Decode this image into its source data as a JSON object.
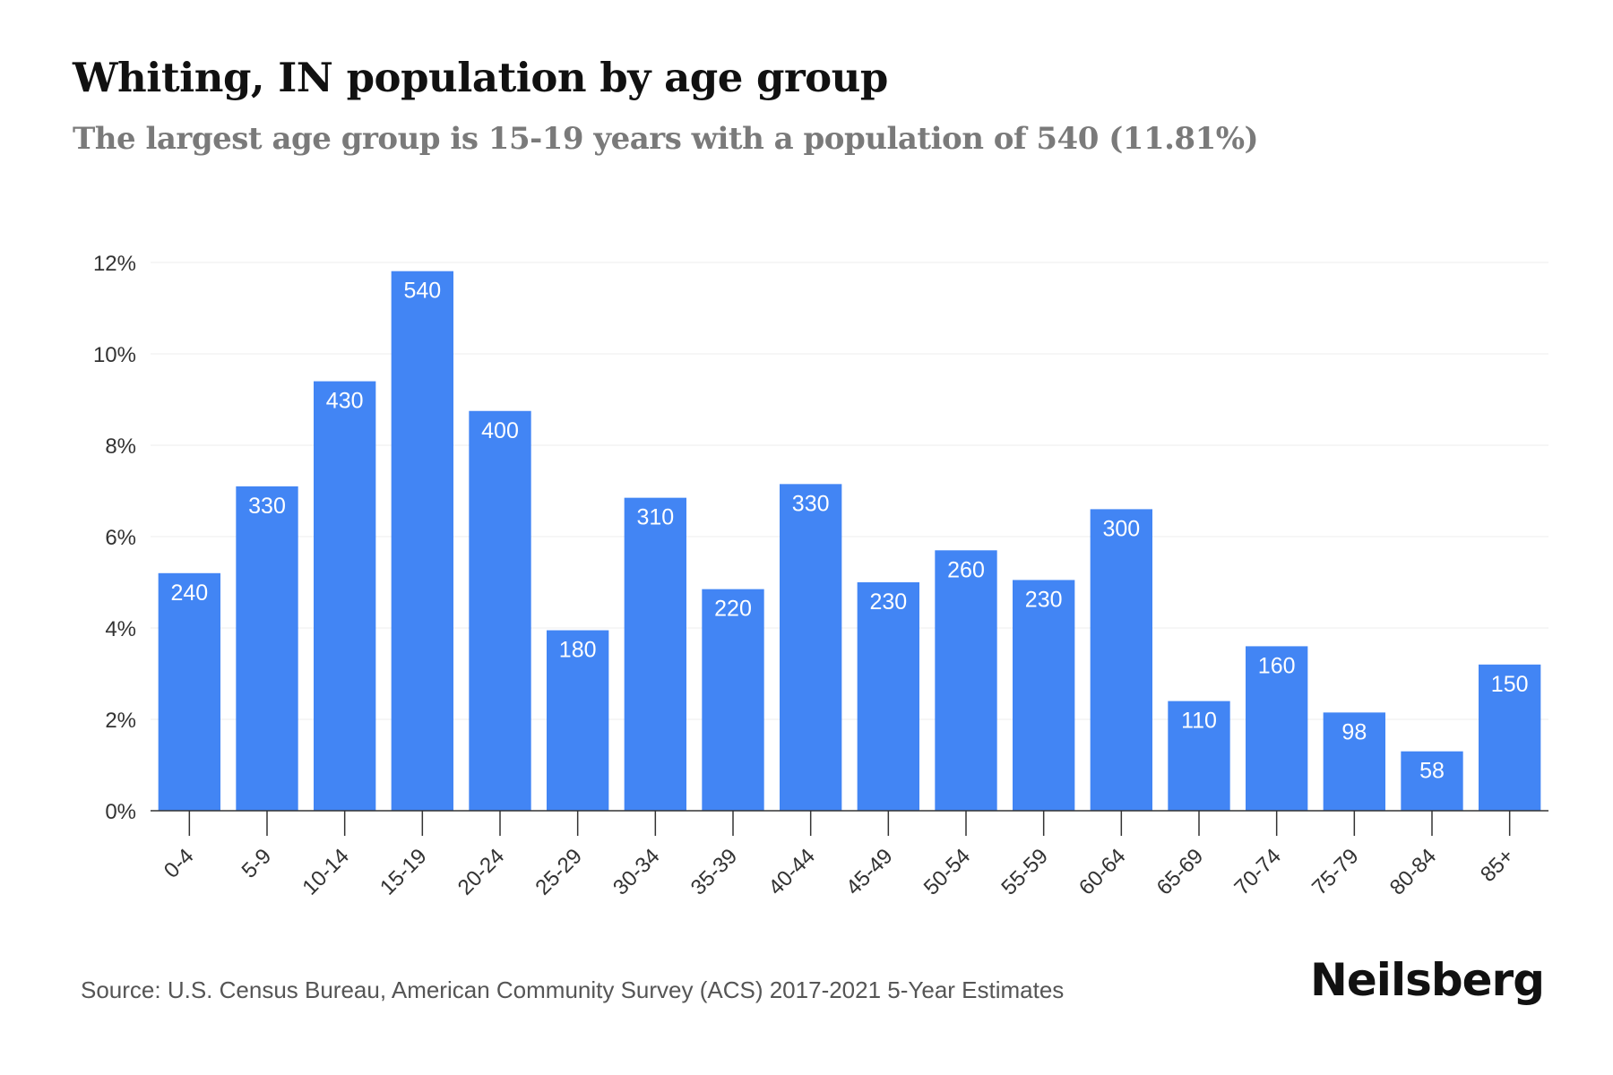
{
  "chart_data": {
    "type": "bar",
    "title": "Whiting, IN population by age group",
    "subtitle": "The largest age group is 15-19 years with a population of 540 (11.81%)",
    "categories": [
      "0-4",
      "5-9",
      "10-14",
      "15-19",
      "20-24",
      "25-29",
      "30-34",
      "35-39",
      "40-44",
      "45-49",
      "50-54",
      "55-59",
      "60-64",
      "65-69",
      "70-74",
      "75-79",
      "80-84",
      "85+"
    ],
    "values": [
      5.2,
      7.1,
      9.4,
      11.81,
      8.75,
      3.95,
      6.85,
      4.85,
      7.15,
      5.0,
      5.7,
      5.05,
      6.6,
      2.4,
      3.6,
      2.15,
      1.3,
      3.2
    ],
    "data_labels": [
      "240",
      "330",
      "430",
      "540",
      "400",
      "180",
      "310",
      "220",
      "330",
      "230",
      "260",
      "230",
      "300",
      "110",
      "160",
      "98",
      "58",
      "150"
    ],
    "y_ticks": [
      "0%",
      "2%",
      "4%",
      "6%",
      "8%",
      "10%",
      "12%"
    ],
    "ylim": [
      0,
      12
    ],
    "xlabel": "",
    "ylabel": "",
    "grid": true,
    "bar_color": "#4285f4"
  },
  "footer": {
    "source": "Source: U.S. Census Bureau, American Community Survey (ACS) 2017-2021 5-Year Estimates",
    "brand": "Neilsberg"
  }
}
